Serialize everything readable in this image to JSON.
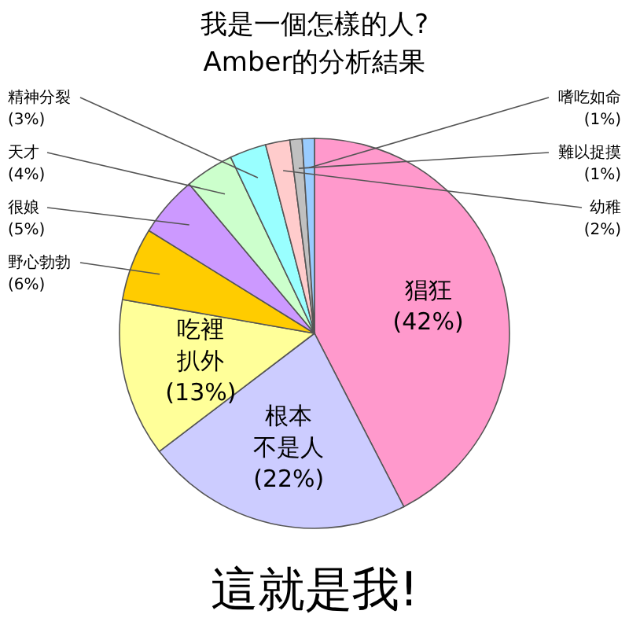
{
  "chart_data": {
    "type": "pie",
    "title": "我是一個怎樣的人?",
    "subtitle": "Amber的分析結果",
    "categories": [
      "猖狂",
      "根本不是人",
      "吃裡扒外",
      "野心勃勃",
      "很娘",
      "天才",
      "精神分裂",
      "幼稚",
      "難以捉摸",
      "嗜吃如命"
    ],
    "values": [
      42,
      22,
      13,
      6,
      5,
      4,
      3,
      2,
      1,
      1
    ],
    "value_labels": [
      "(42%)",
      "(22%)",
      "(13%)",
      "(6%)",
      "(5%)",
      "(4%)",
      "(3%)",
      "(2%)",
      "(1%)",
      "(1%)"
    ],
    "colors": [
      "#ff99cc",
      "#ccccff",
      "#ffff99",
      "#ffcc00",
      "#cc99ff",
      "#ccffcc",
      "#99ffff",
      "#ffcccc",
      "#c0c0c0",
      "#99ccff"
    ],
    "annotations": [
      "這就是我!"
    ]
  }
}
